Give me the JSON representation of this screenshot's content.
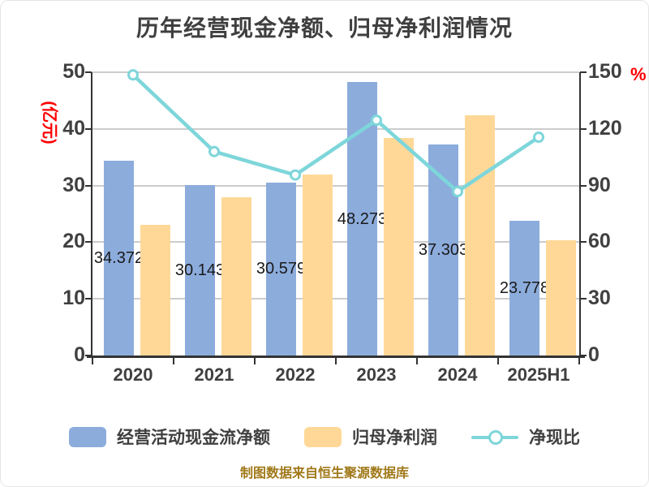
{
  "title": "历年经营现金净额、归母净利润情况",
  "left_axis": {
    "unit_label": "(亿元)",
    "ticks": [
      "50",
      "40",
      "30",
      "20",
      "10",
      "0"
    ]
  },
  "right_axis": {
    "unit_label": "%",
    "ticks": [
      "150",
      "120",
      "90",
      "60",
      "30",
      "0"
    ]
  },
  "footer": {
    "text": "制图数据来自恒生聚源数据库"
  },
  "legend": {
    "items": [
      {
        "label": "经营活动现金流净额",
        "marker": "bar",
        "color": "#8CACDC"
      },
      {
        "label": "归母净利润",
        "marker": "bar",
        "color": "#FFD898"
      },
      {
        "label": "净现比",
        "marker": "line",
        "color": "#7DD6DA"
      }
    ]
  },
  "colors": {
    "bar_blue": "#8CACDC",
    "bar_orange": "#FFD898",
    "line_teal": "#7DD6DA",
    "axis_text": "#404040",
    "grid": "#CCCCCC",
    "axis_line": "#333333",
    "unit_red": "#FF0000",
    "footer_gold": "#A07818",
    "label_dark": "#1A1A1A",
    "background": "#FFFFFF"
  },
  "chart_data": {
    "type": "bar",
    "subtype": "grouped-bars-with-line",
    "title": "历年经营现金净额、归母净利润情况",
    "categories": [
      "2020",
      "2021",
      "2022",
      "2023",
      "2024",
      "2025H1"
    ],
    "series": [
      {
        "name": "经营活动现金流净额",
        "type": "bar",
        "axis": "left",
        "color": "#8CACDC",
        "values": [
          34.372,
          30.143,
          30.579,
          48.273,
          37.303,
          23.778
        ],
        "labels": [
          "34.372",
          "30.143",
          "30.579",
          "48.273",
          "37.303",
          "23.778"
        ]
      },
      {
        "name": "归母净利润",
        "type": "bar",
        "axis": "left",
        "color": "#FFD898",
        "values": [
          23.0,
          27.9,
          31.9,
          38.4,
          42.4,
          20.3
        ]
      },
      {
        "name": "净现比",
        "type": "line",
        "axis": "right",
        "color": "#7DD6DA",
        "marker": "circle-open",
        "values": [
          148.6,
          108.0,
          95.6,
          124.6,
          86.8,
          115.6
        ]
      }
    ],
    "left_ylabel": "(亿元)",
    "right_ylabel": "%",
    "left_ylim": [
      0,
      50
    ],
    "right_ylim": [
      0,
      150
    ],
    "grid": true,
    "legend_position": "bottom",
    "source_note": "制图数据来自恒生聚源数据库"
  }
}
